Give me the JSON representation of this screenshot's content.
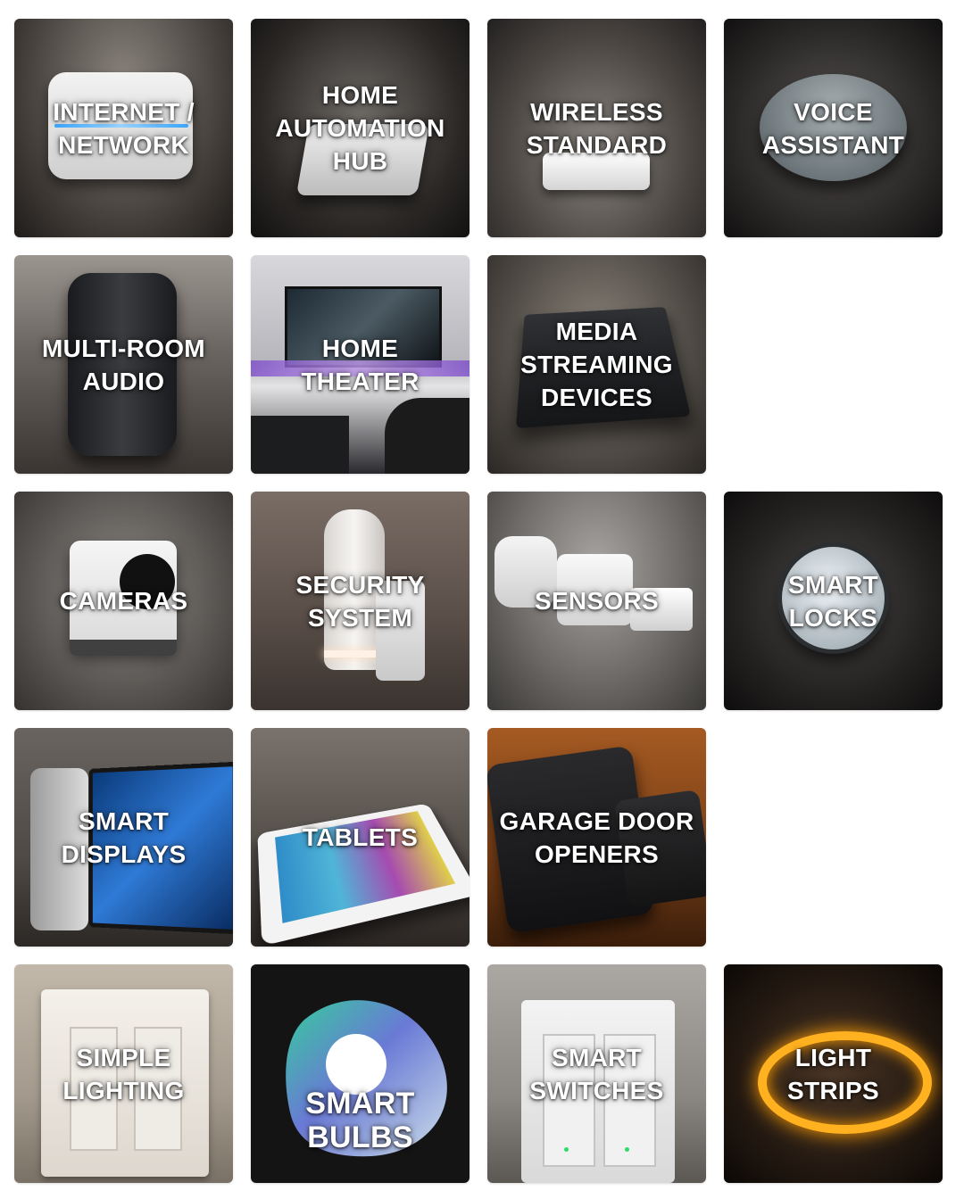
{
  "categories": [
    {
      "id": "internet-network",
      "label": "INTERNET /\nNETWORK",
      "icon": "router-photo",
      "bg": [
        "#6b6660",
        "#2e2a27"
      ]
    },
    {
      "id": "home-automation-hub",
      "label": "HOME\nAUTOMATION\nHUB",
      "icon": "hub-photo",
      "bg": [
        "#4a4643",
        "#1d1b1a"
      ]
    },
    {
      "id": "wireless-standard",
      "label": "WIRELESS\nSTANDARD",
      "icon": "wireless-module-photo",
      "bg": [
        "#5d5955",
        "#2a2725"
      ]
    },
    {
      "id": "voice-assistant",
      "label": "VOICE\nASSISTANT",
      "icon": "smart-speaker-photo",
      "bg": [
        "#4d4a48",
        "#1e1c1b"
      ]
    },
    {
      "id": "multi-room-audio",
      "label": "MULTI-ROOM\nAUDIO",
      "icon": "speaker-photo",
      "bg": [
        "#6a6460",
        "#2f2b28"
      ]
    },
    {
      "id": "home-theater",
      "label": "HOME\nTHEATER",
      "icon": "tv-photo",
      "bg": [
        "#bdbdc4",
        "#2c2c30"
      ]
    },
    {
      "id": "media-streaming-devices",
      "label": "MEDIA\nSTREAMING\nDEVICES",
      "icon": "streaming-box-photo",
      "bg": [
        "#5e5751",
        "#2b2622"
      ]
    },
    {
      "id": "cameras",
      "label": "CAMERAS",
      "icon": "camera-photo",
      "bg": [
        "#6f6c69",
        "#3a3735"
      ]
    },
    {
      "id": "security-system",
      "label": "SECURITY\nSYSTEM",
      "icon": "security-base-photo",
      "bg": [
        "#6e625c",
        "#2e2724"
      ]
    },
    {
      "id": "sensors",
      "label": "SENSORS",
      "icon": "sensor-photo",
      "bg": [
        "#8c8986",
        "#3f3c3a"
      ]
    },
    {
      "id": "smart-locks",
      "label": "SMART\nLOCKS",
      "icon": "lock-photo",
      "bg": [
        "#3b3938",
        "#141313"
      ]
    },
    {
      "id": "smart-displays",
      "label": "SMART\nDISPLAYS",
      "icon": "smart-display-photo",
      "bg": [
        "#6a6460",
        "#2d2926"
      ]
    },
    {
      "id": "tablets",
      "label": "TABLETS",
      "icon": "tablet-photo",
      "bg": [
        "#57514c",
        "#231f1c"
      ]
    },
    {
      "id": "garage-door-openers",
      "label": "GARAGE DOOR\nOPENERS",
      "icon": "garage-controller-photo",
      "bg": [
        "#8a4a1e",
        "#3a1e0d"
      ]
    },
    {
      "id": "simple-lighting",
      "label": "SIMPLE\nLIGHTING",
      "icon": "light-switch-photo",
      "bg": [
        "#b5ab9e",
        "#6e655b"
      ]
    },
    {
      "id": "smart-bulbs",
      "label": "SMART\nBULBS",
      "icon": "smart-bulb-logo",
      "bg": [
        "#1e1e20",
        "#0d0d0e"
      ]
    },
    {
      "id": "smart-switches",
      "label": "SMART\nSWITCHES",
      "icon": "smart-switch-photo",
      "bg": [
        "#a19d98",
        "#5e5a56"
      ]
    },
    {
      "id": "light-strips",
      "label": "LIGHT\nSTRIPS",
      "icon": "light-strip-photo",
      "bg": [
        "#3a2c20",
        "#120d09"
      ]
    }
  ]
}
